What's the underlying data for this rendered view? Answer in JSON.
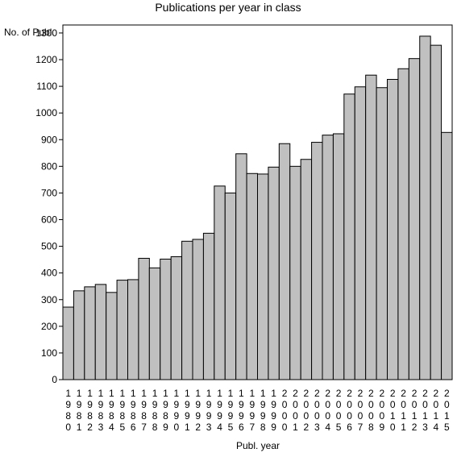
{
  "chart_data": {
    "type": "bar",
    "title": "Publications per year in class",
    "ylabel": "No. of Publ.",
    "xlabel": "Publ. year",
    "ylim": [
      0,
      1330
    ],
    "yticks": [
      0,
      100,
      200,
      300,
      400,
      500,
      600,
      700,
      800,
      900,
      1000,
      1100,
      1200,
      1300
    ],
    "categories": [
      "1980",
      "1981",
      "1982",
      "1983",
      "1984",
      "1985",
      "1986",
      "1987",
      "1988",
      "1989",
      "1990",
      "1991",
      "1992",
      "1993",
      "1994",
      "1995",
      "1996",
      "1997",
      "1998",
      "1999",
      "2000",
      "2001",
      "2002",
      "2003",
      "2004",
      "2005",
      "2006",
      "2007",
      "2008",
      "2009",
      "2010",
      "2011",
      "2012",
      "2013",
      "2014",
      "2015"
    ],
    "values": [
      272,
      333,
      348,
      357,
      327,
      373,
      375,
      455,
      419,
      452,
      461,
      519,
      526,
      549,
      726,
      700,
      847,
      773,
      771,
      797,
      885,
      800,
      826,
      890,
      917,
      922,
      1071,
      1098,
      1142,
      1095,
      1126,
      1166,
      1204,
      1288,
      1254,
      927
    ],
    "grid": false,
    "legend": "none",
    "bar_color": "#c0c0c0",
    "edge_color": "#000000"
  }
}
